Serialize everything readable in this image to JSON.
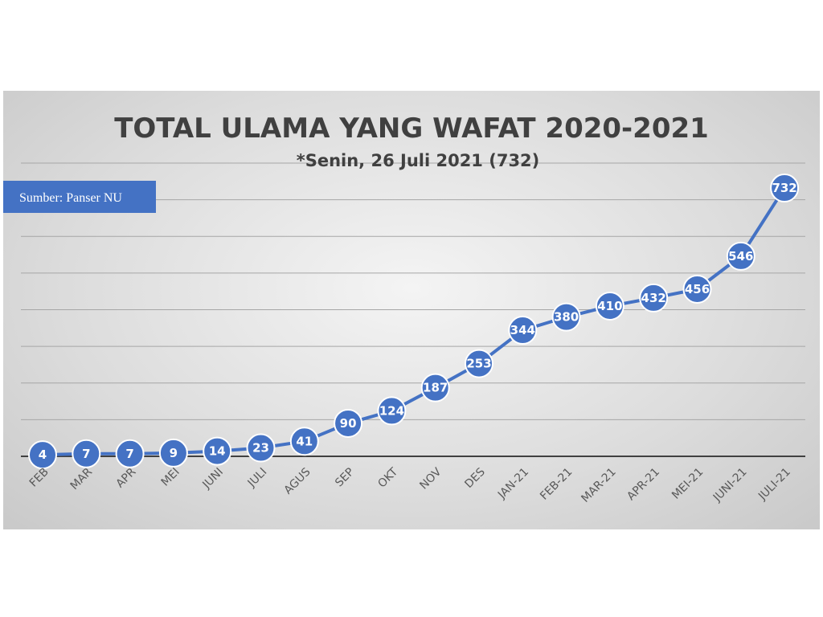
{
  "chart_data": {
    "type": "line",
    "title": "TOTAL ULAMA YANG WAFAT 2020-2021",
    "subtitle": "*Senin, 26 Juli 2021 (732)",
    "source_note": "Sumber: Panser NU",
    "categories": [
      "FEB",
      "MAR",
      "APR",
      "MEI",
      "JUNI",
      "JULI",
      "AGUS",
      "SEP",
      "OKT",
      "NOV",
      "DES",
      "JAN-21",
      "FEB-21",
      "MAR-21",
      "APR-21",
      "MEI-21",
      "JUNI-21",
      "JULI-21"
    ],
    "series": [
      {
        "values": [
          4,
          7,
          7,
          9,
          14,
          23,
          41,
          90,
          124,
          187,
          253,
          344,
          380,
          410,
          432,
          456,
          546,
          732
        ]
      }
    ],
    "ylim": [
      0,
      800
    ],
    "grid": true,
    "data_labels": true,
    "colors": {
      "line": "#4472c4",
      "marker": "#4472c4",
      "marker_border": "#ffffff",
      "grid": "#a6a6a6",
      "axis": "#404040",
      "source_box": "#4472c4"
    }
  }
}
